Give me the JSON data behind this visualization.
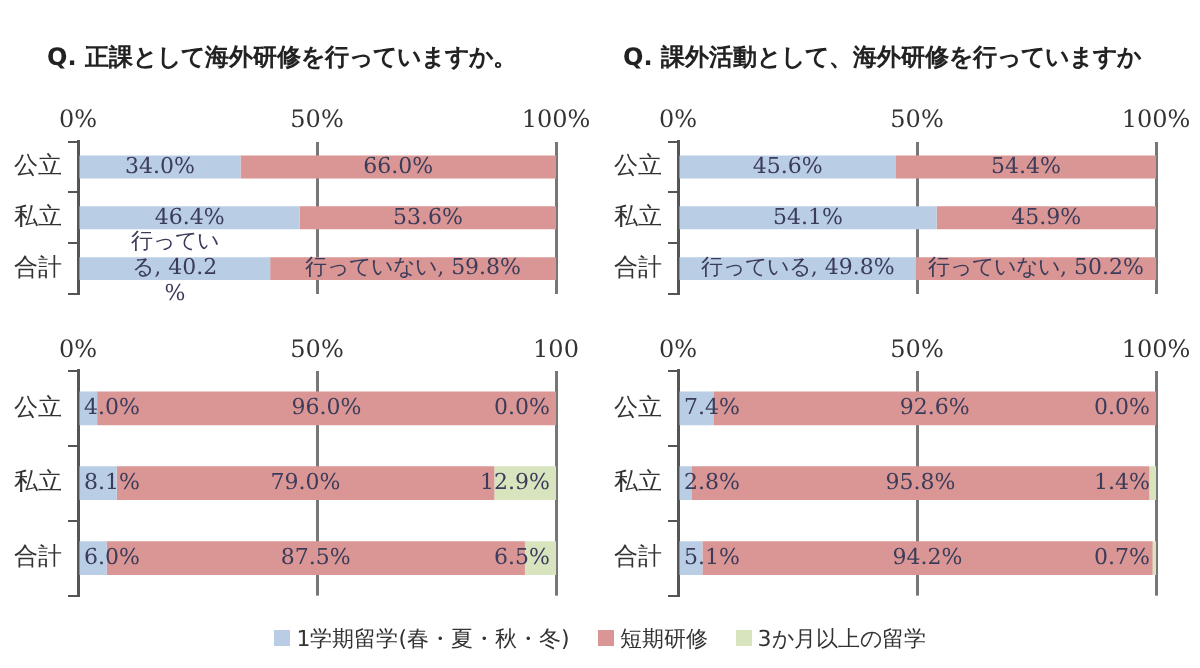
{
  "chart_data": [
    {
      "type": "bar",
      "orientation": "horizontal",
      "stacked": true,
      "title": "Q. 正課として海外研修を行っていますか。",
      "categories": [
        "公立",
        "私立",
        "合計"
      ],
      "xlim": [
        0,
        100
      ],
      "xticks": [
        {
          "value": 0,
          "label": "0%"
        },
        {
          "value": 50,
          "label": "50%"
        },
        {
          "value": 100,
          "label": "100%"
        }
      ],
      "grid": "x",
      "series": [
        {
          "color": "#b9cde5",
          "values": [
            34.0,
            46.4,
            40.2
          ],
          "value_labels": [
            "34.0%",
            "46.4%",
            "行っている, 40.2%"
          ]
        },
        {
          "color": "#d99694",
          "values": [
            66.0,
            53.6,
            59.8
          ],
          "value_labels": [
            "66.0%",
            "53.6%",
            "行っていない, 59.8%"
          ]
        }
      ]
    },
    {
      "type": "bar",
      "orientation": "horizontal",
      "stacked": true,
      "title": "Q. 課外活動として、海外研修を行っていますか",
      "categories": [
        "公立",
        "私立",
        "合計"
      ],
      "xlim": [
        0,
        100
      ],
      "xticks": [
        {
          "value": 0,
          "label": "0%"
        },
        {
          "value": 50,
          "label": "50%"
        },
        {
          "value": 100,
          "label": "100%"
        }
      ],
      "grid": "x",
      "series": [
        {
          "color": "#b9cde5",
          "values": [
            45.6,
            54.1,
            49.8
          ],
          "value_labels": [
            "45.6%",
            "54.1%",
            "行っている, 49.8%"
          ]
        },
        {
          "color": "#d99694",
          "values": [
            54.4,
            45.9,
            50.2
          ],
          "value_labels": [
            "54.4%",
            "45.9%",
            "行っていない, 50.2%"
          ]
        }
      ]
    },
    {
      "type": "bar",
      "orientation": "horizontal",
      "stacked": true,
      "categories": [
        "公立",
        "私立",
        "合計"
      ],
      "xlim": [
        0,
        100
      ],
      "xticks": [
        {
          "value": 0,
          "label": "0%"
        },
        {
          "value": 50,
          "label": "50%"
        },
        {
          "value": 100,
          "label": "100"
        }
      ],
      "grid": "x",
      "legend": "bottom",
      "series": [
        {
          "name": "1学期留学(春・夏・秋・冬)",
          "color": "#b9cde5",
          "values": [
            4.0,
            8.1,
            6.0
          ],
          "value_labels": [
            "4.0%",
            "8.1%",
            "6.0%"
          ]
        },
        {
          "name": "短期研修",
          "color": "#d99694",
          "values": [
            96.0,
            79.0,
            87.5
          ],
          "value_labels": [
            "96.0%",
            "79.0%",
            "87.5%"
          ]
        },
        {
          "name": "3か月以上の留学",
          "color": "#d7e4bd",
          "values": [
            0.0,
            12.9,
            6.5
          ],
          "value_labels": [
            "0.0%",
            "12.9%",
            "6.5%"
          ]
        }
      ]
    },
    {
      "type": "bar",
      "orientation": "horizontal",
      "stacked": true,
      "categories": [
        "公立",
        "私立",
        "合計"
      ],
      "xlim": [
        0,
        100
      ],
      "xticks": [
        {
          "value": 0,
          "label": "0%"
        },
        {
          "value": 50,
          "label": "50%"
        },
        {
          "value": 100,
          "label": "100%"
        }
      ],
      "grid": "x",
      "series": [
        {
          "color": "#b9cde5",
          "values": [
            7.4,
            2.8,
            5.1
          ],
          "value_labels": [
            "7.4%",
            "2.8%",
            "5.1%"
          ]
        },
        {
          "color": "#d99694",
          "values": [
            92.6,
            95.8,
            94.2
          ],
          "value_labels": [
            "92.6%",
            "95.8%",
            "94.2%"
          ]
        },
        {
          "color": "#d7e4bd",
          "values": [
            0.0,
            1.4,
            0.7
          ],
          "value_labels": [
            "0.0%",
            "1.4%",
            "0.7%"
          ]
        }
      ]
    }
  ]
}
